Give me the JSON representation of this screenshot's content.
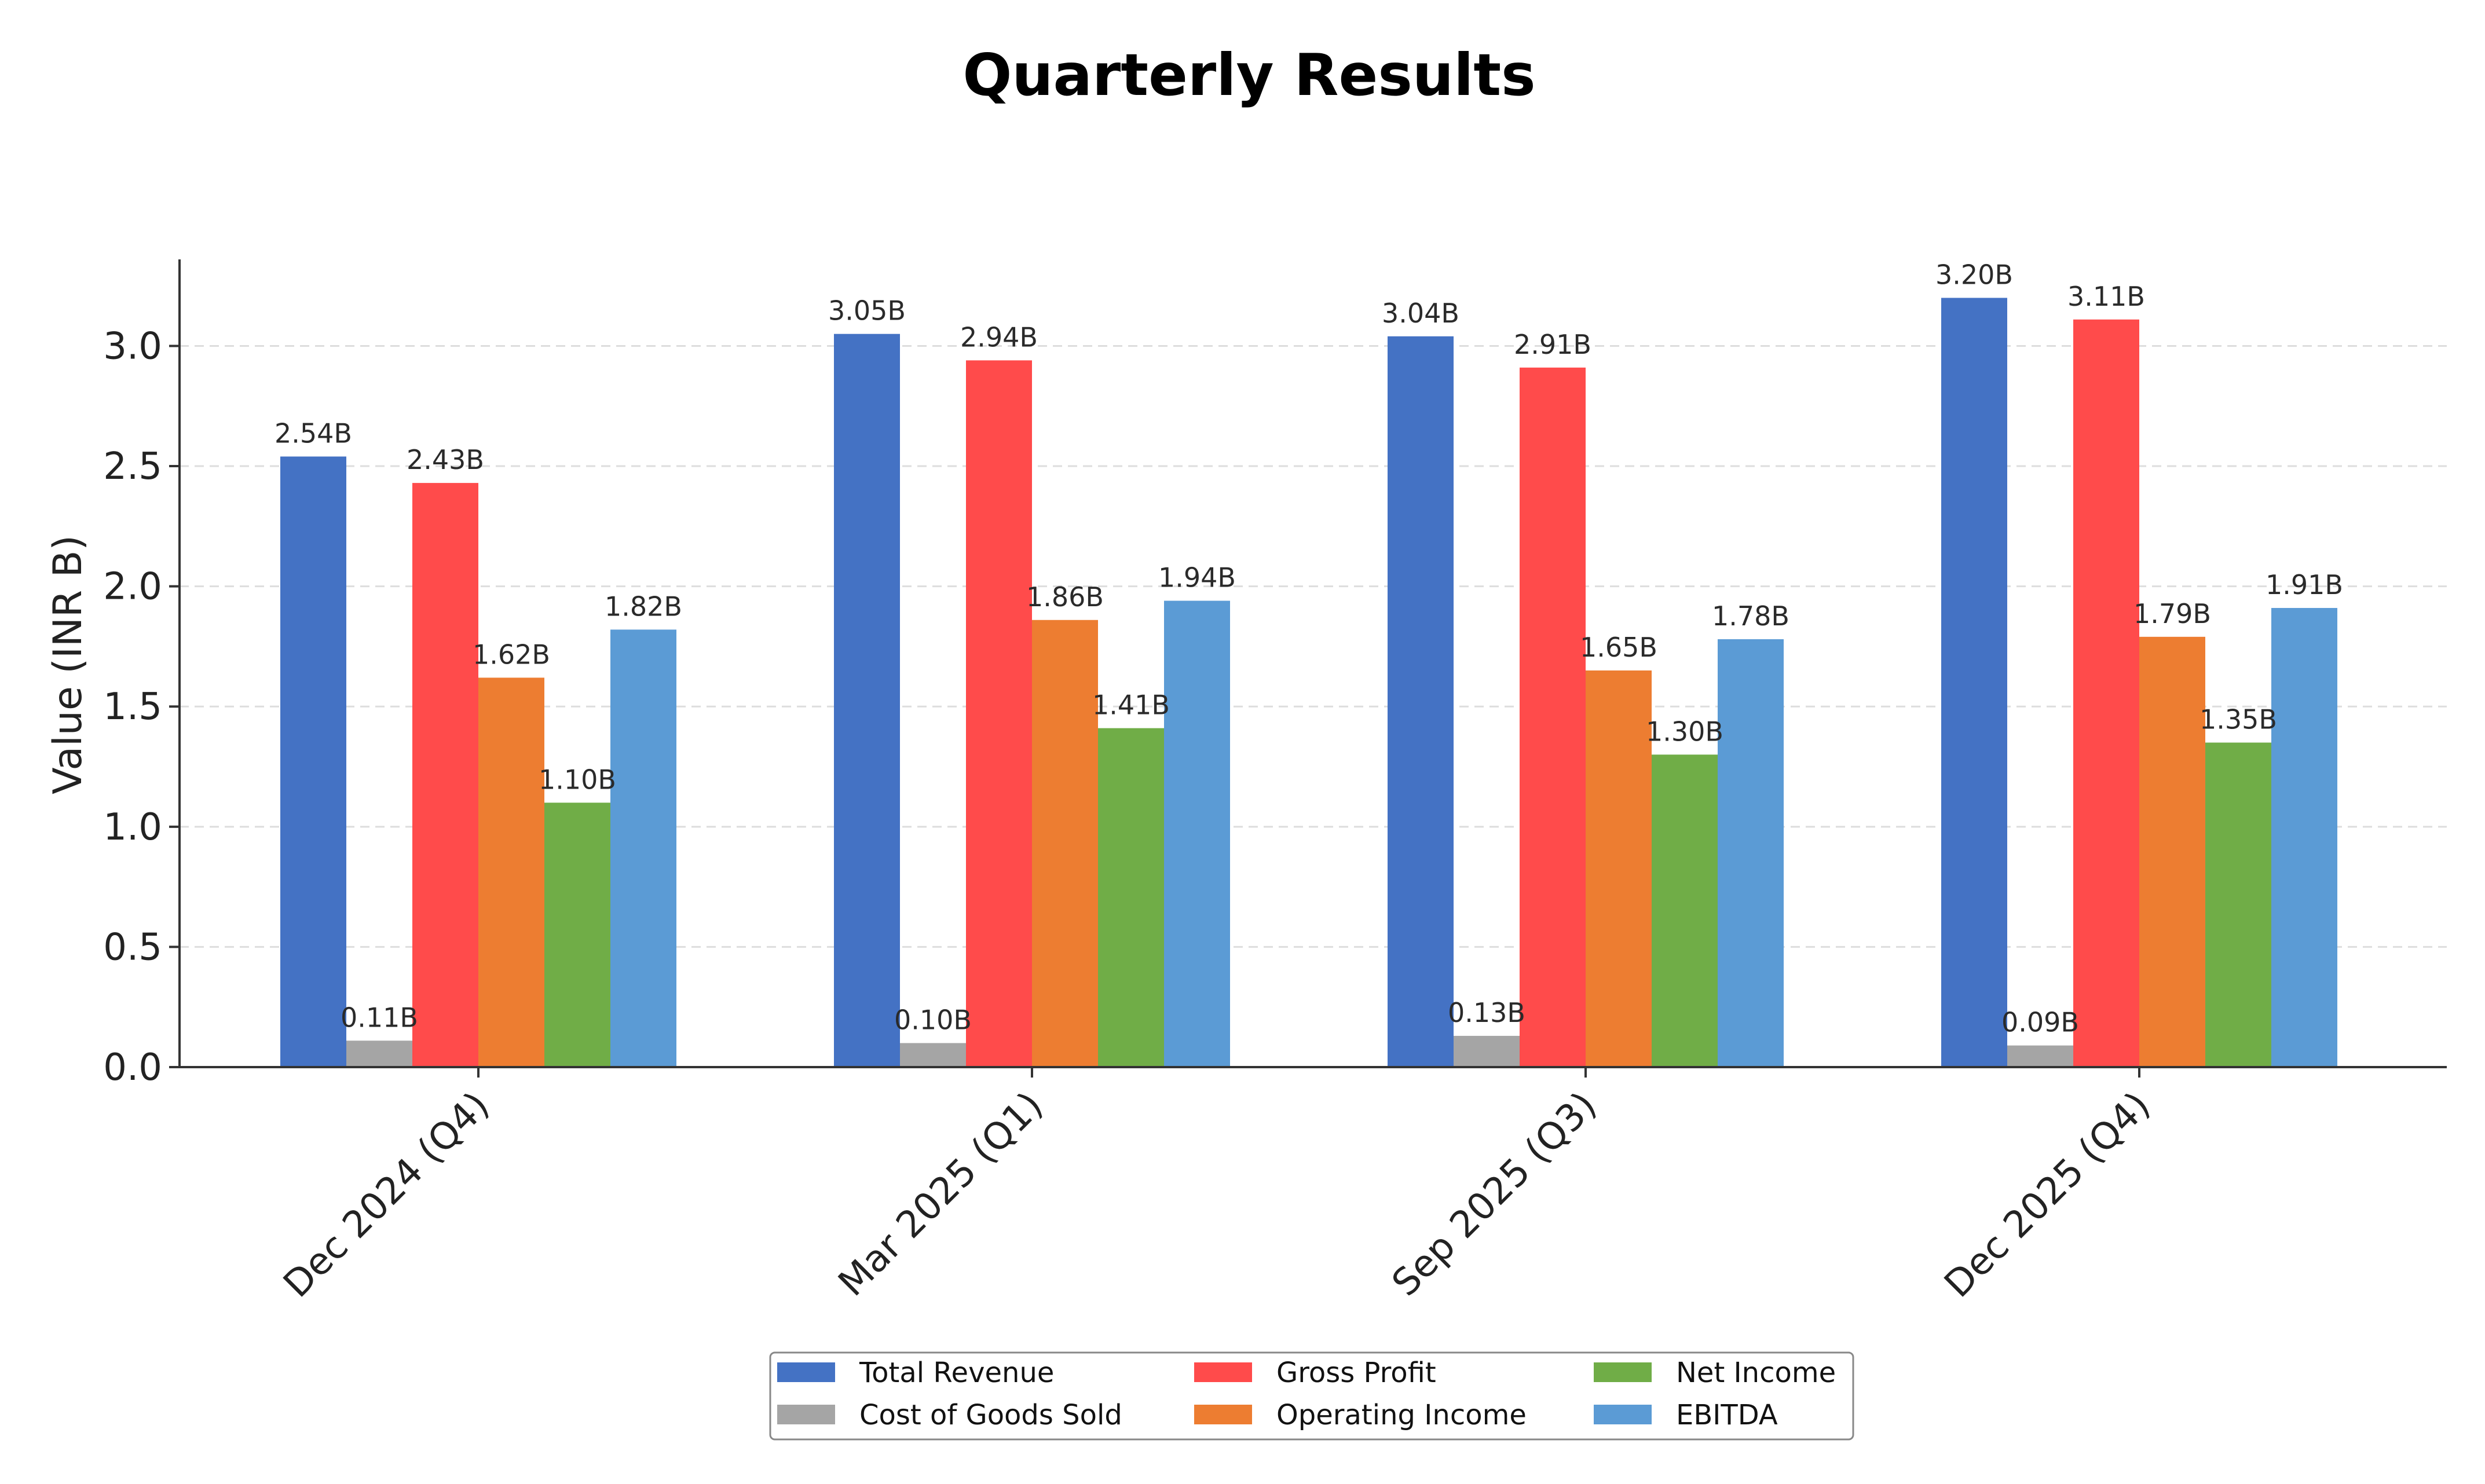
{
  "chart_data": {
    "type": "bar",
    "title": "Quarterly Results",
    "xlabel": "",
    "ylabel": "Value (INR B)",
    "ylim": [
      0,
      3.36
    ],
    "yticks": [
      "0.0",
      "0.5",
      "1.0",
      "1.5",
      "2.0",
      "2.5",
      "3.0"
    ],
    "grid": true,
    "legend_position": "bottom-center",
    "categories": [
      "Dec 2024 (Q4)",
      "Mar 2025 (Q1)",
      "Sep 2025 (Q3)",
      "Dec 2025 (Q4)"
    ],
    "series": [
      {
        "name": "Total Revenue",
        "color": "#4472c4",
        "values": [
          2.54,
          3.05,
          3.04,
          3.2
        ],
        "labels": [
          "2.54B",
          "3.05B",
          "3.04B",
          "3.20B"
        ]
      },
      {
        "name": "Cost of Goods Sold",
        "color": "#a5a5a5",
        "values": [
          0.11,
          0.1,
          0.13,
          0.09
        ],
        "labels": [
          "0.11B",
          "0.10B",
          "0.13B",
          "0.09B"
        ]
      },
      {
        "name": "Gross Profit",
        "color": "#ff4b4b",
        "values": [
          2.43,
          2.94,
          2.91,
          3.11
        ],
        "labels": [
          "2.43B",
          "2.94B",
          "2.91B",
          "3.11B"
        ]
      },
      {
        "name": "Operating Income",
        "color": "#ed7d31",
        "values": [
          1.62,
          1.86,
          1.65,
          1.79
        ],
        "labels": [
          "1.62B",
          "1.86B",
          "1.65B",
          "1.79B"
        ]
      },
      {
        "name": "Net Income",
        "color": "#70ad47",
        "values": [
          1.1,
          1.41,
          1.3,
          1.35
        ],
        "labels": [
          "1.10B",
          "1.41B",
          "1.30B",
          "1.35B"
        ]
      },
      {
        "name": "EBITDA",
        "color": "#5b9bd5",
        "values": [
          1.82,
          1.94,
          1.78,
          1.91
        ],
        "labels": [
          "1.82B",
          "1.94B",
          "1.78B",
          "1.91B"
        ]
      }
    ]
  }
}
